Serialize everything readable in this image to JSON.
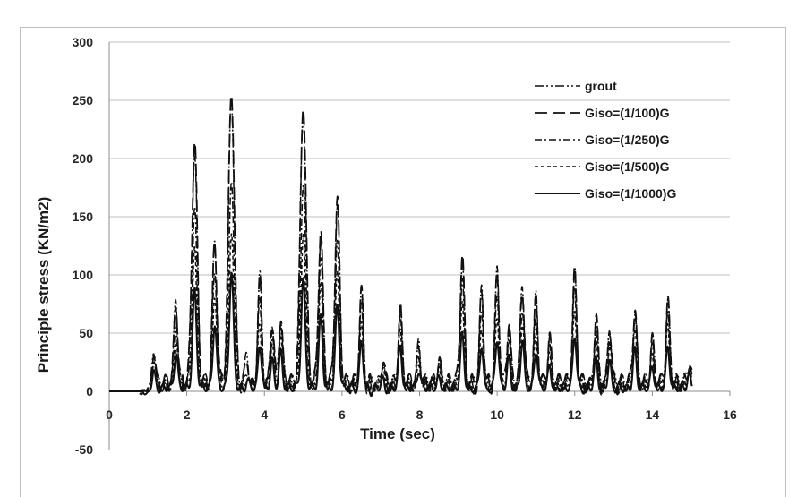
{
  "chart_data": {
    "type": "line",
    "title": "",
    "xlabel": "Time (sec)",
    "ylabel": "Principle stress (KN/m2)",
    "xlim": [
      0,
      16
    ],
    "ylim": [
      -50,
      300
    ],
    "x_ticks": [
      0,
      2,
      4,
      6,
      8,
      10,
      12,
      14,
      16
    ],
    "y_ticks": [
      -50,
      0,
      50,
      100,
      150,
      200,
      250,
      300
    ],
    "grid": "horizontal",
    "legend_position": "top-right",
    "peak_times": [
      1.15,
      1.72,
      2.2,
      2.72,
      3.15,
      3.55,
      3.88,
      4.2,
      4.42,
      5.0,
      5.45,
      5.88,
      6.5,
      7.05,
      7.5,
      7.98,
      8.5,
      9.1,
      9.6,
      10.0,
      10.3,
      10.65,
      11.0,
      11.35,
      12.0,
      12.55,
      12.9,
      13.55,
      14.0,
      14.4,
      14.95
    ],
    "series": [
      {
        "name": "grout",
        "color": "#111111",
        "dash": "dashdotdot",
        "peaks": [
          34,
          70,
          200,
          118,
          245,
          25,
          90,
          55,
          58,
          235,
          128,
          152,
          80,
          22,
          62,
          32,
          22,
          108,
          80,
          94,
          54,
          84,
          72,
          40,
          92,
          58,
          50,
          65,
          38,
          70,
          18
        ]
      },
      {
        "name": "Giso=(1/100)G",
        "color": "#111111",
        "dash": "longdash",
        "peaks": [
          33,
          68,
          208,
          122,
          253,
          22,
          85,
          52,
          56,
          242,
          130,
          155,
          78,
          20,
          64,
          30,
          18,
          110,
          78,
          92,
          52,
          82,
          70,
          38,
          93,
          57,
          48,
          63,
          36,
          68,
          17
        ]
      },
      {
        "name": "Giso=(1/250)G",
        "color": "#111111",
        "dash": "dashdot",
        "peaks": [
          28,
          55,
          150,
          100,
          180,
          15,
          70,
          42,
          48,
          175,
          105,
          118,
          68,
          16,
          55,
          26,
          14,
          88,
          65,
          78,
          42,
          68,
          55,
          30,
          80,
          48,
          40,
          55,
          30,
          58,
          15
        ]
      },
      {
        "name": "Giso=(1/500)G",
        "color": "#111111",
        "dash": "shortdash",
        "peaks": [
          22,
          42,
          115,
          80,
          135,
          12,
          55,
          35,
          40,
          130,
          85,
          95,
          55,
          12,
          45,
          22,
          12,
          68,
          52,
          62,
          35,
          55,
          45,
          25,
          65,
          40,
          35,
          45,
          25,
          50,
          13
        ]
      },
      {
        "name": "Giso=(1/1000)G",
        "color": "#111111",
        "dash": "solid",
        "peaks": [
          15,
          30,
          82,
          55,
          100,
          8,
          40,
          25,
          30,
          92,
          60,
          70,
          40,
          8,
          35,
          15,
          8,
          45,
          38,
          45,
          25,
          40,
          32,
          18,
          45,
          28,
          25,
          32,
          18,
          35,
          10
        ]
      }
    ]
  }
}
